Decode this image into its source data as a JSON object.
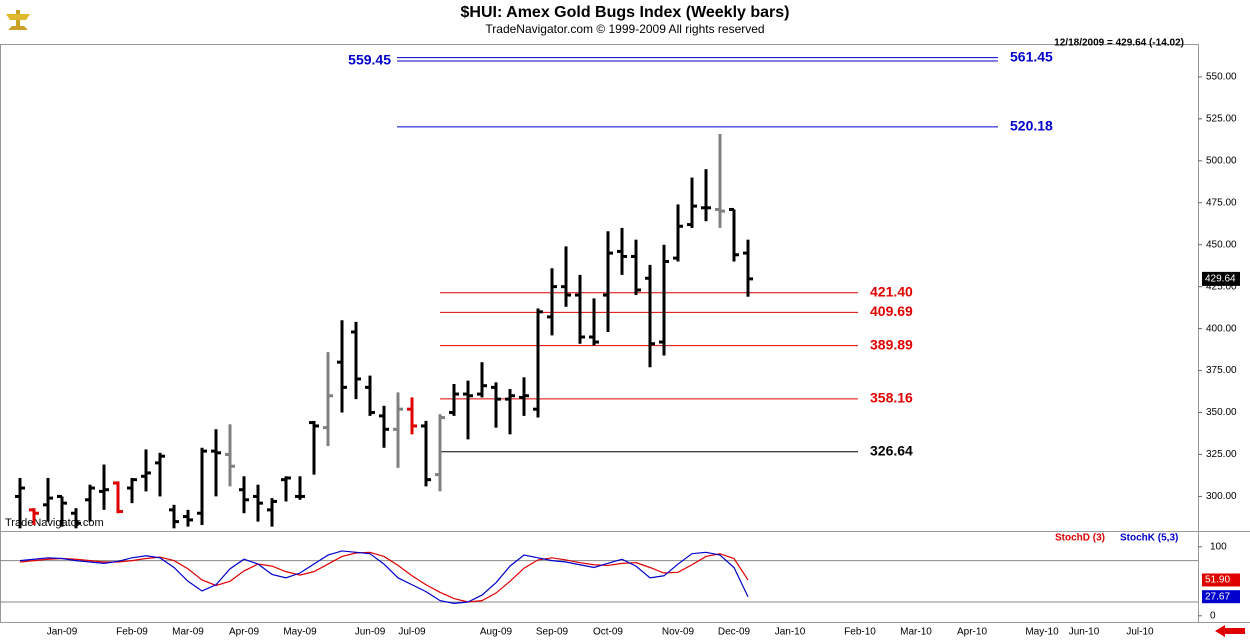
{
  "chart_data": [
    {
      "type": "ohlc",
      "title": "$HUI:  Amex Gold Bugs Index  (Weekly bars)",
      "subtitle": "TradeNavigator.com © 1999-2009 All rights reserved",
      "info": "12/18/2009 = 429.64 (-14.02)",
      "watermark": "TradeNavigator.com",
      "color": "#000000",
      "bar_colors": {
        "1": "#e00000",
        "7": "#e00000",
        "28": "#e00000",
        "15": "#808080",
        "22": "#808080",
        "27": "#808080",
        "30": "#808080",
        "50": "#808080"
      },
      "ohlc": {
        "open": [
          300,
          292,
          295,
          300,
          290,
          298,
          303,
          308,
          305,
          312,
          320,
          292,
          288,
          290,
          327,
          325,
          304,
          300,
          292,
          310,
          300,
          344,
          341,
          380,
          398,
          365,
          348,
          340,
          352,
          342,
          313,
          350,
          361,
          361,
          365,
          358,
          359,
          352,
          407,
          425,
          420,
          395,
          420,
          446,
          443,
          430,
          392,
          442,
          462,
          472,
          471,
          471,
          445,
          null,
          null,
          null,
          null,
          null,
          null,
          null,
          null,
          null,
          null,
          null,
          null,
          null,
          null,
          null,
          null,
          null,
          null,
          null,
          null,
          null,
          null,
          null,
          null,
          null,
          null,
          null,
          null,
          null,
          null,
          null
        ],
        "high": [
          311,
          293,
          311,
          300,
          293,
          307,
          319,
          309,
          311,
          328,
          326,
          295,
          292,
          329,
          340,
          343,
          312,
          307,
          299,
          312,
          312,
          345,
          386,
          405,
          404,
          372,
          354,
          362,
          359,
          345,
          349,
          367,
          369,
          380,
          368,
          364,
          371,
          412,
          436,
          449,
          432,
          418,
          458,
          460,
          453,
          438,
          450,
          474,
          490,
          495,
          516,
          471,
          453,
          null,
          null,
          null,
          null,
          null,
          null,
          null,
          null,
          null,
          null,
          null,
          null,
          null,
          null,
          null,
          null,
          null,
          null,
          null,
          null,
          null,
          null,
          null,
          null,
          null,
          null,
          null,
          null,
          null,
          null,
          null
        ],
        "low": [
          281,
          283,
          285,
          282,
          281,
          285,
          292,
          290,
          296,
          303,
          300,
          281,
          282,
          283,
          300,
          306,
          290,
          285,
          282,
          297,
          298,
          313,
          330,
          350,
          358,
          348,
          329,
          317,
          337,
          306,
          303,
          348,
          334,
          359,
          341,
          337,
          348,
          347,
          396,
          413,
          391,
          390,
          398,
          432,
          420,
          377,
          384,
          440,
          460,
          464,
          460,
          440,
          419,
          null,
          null,
          null,
          null,
          null,
          null,
          null,
          null,
          null,
          null,
          null,
          null,
          null,
          null,
          null,
          null,
          null,
          null,
          null,
          null,
          null,
          null,
          null,
          null,
          null,
          null,
          null,
          null,
          null,
          null,
          null
        ],
        "close": [
          305,
          290,
          299,
          296,
          284,
          305,
          304,
          291,
          310,
          314,
          324,
          285,
          286,
          327,
          326,
          318,
          298,
          296,
          297,
          311,
          300,
          342,
          360,
          365,
          370,
          350,
          340,
          352,
          342,
          310,
          347,
          361,
          360,
          366,
          358,
          360,
          360,
          410,
          425,
          420,
          395,
          392,
          445,
          443,
          423,
          391,
          440,
          461,
          473,
          472,
          470,
          444,
          429.64,
          null,
          null,
          null,
          null,
          null,
          null,
          null,
          null,
          null,
          null,
          null,
          null,
          null,
          null,
          null,
          null,
          null,
          null,
          null,
          null,
          null,
          null,
          null,
          null,
          null,
          null,
          null,
          null,
          null,
          null,
          null
        ]
      },
      "levels": {
        "values": [
          561.45,
          559.45,
          520.18,
          421.4,
          409.69,
          389.89,
          358.16,
          326.64
        ],
        "value_labels": [
          "561.45",
          "559.45",
          "520.18",
          "421.40",
          "409.69",
          "389.89",
          "358.16",
          "326.64"
        ],
        "colors": [
          "#0000cc",
          "#0000cc",
          "#0000cc",
          "#e00000",
          "#e00000",
          "#e00000",
          "#e00000",
          "#000000"
        ]
      },
      "ylim": [
        280,
        569
      ],
      "yticks": [
        {
          "value": 300,
          "label": "300.00"
        },
        {
          "value": 325,
          "label": "325.00"
        },
        {
          "value": 350,
          "label": "350.00"
        },
        {
          "value": 375,
          "label": "375.00"
        },
        {
          "value": 400,
          "label": "400.00"
        },
        {
          "value": 425,
          "label": "425.00"
        },
        {
          "value": 450,
          "label": "450.00"
        },
        {
          "value": 475,
          "label": "475.00"
        },
        {
          "value": 500,
          "label": "500.00"
        },
        {
          "value": 525,
          "label": "525.00"
        },
        {
          "value": 550,
          "label": "550.00"
        }
      ]
    },
    {
      "type": "line",
      "categories": [
        null,
        null,
        null,
        "Jan-09",
        null,
        null,
        null,
        null,
        "Feb-09",
        null,
        null,
        null,
        "Mar-09",
        null,
        null,
        null,
        "Apr-09",
        null,
        null,
        null,
        "May-09",
        null,
        null,
        null,
        null,
        "Jun-09",
        null,
        null,
        "Jul-09",
        null,
        null,
        null,
        null,
        null,
        "Aug-09",
        null,
        null,
        null,
        "Sep-09",
        null,
        null,
        null,
        "Oct-09",
        null,
        null,
        null,
        null,
        "Nov-09",
        null,
        null,
        null,
        "Dec-09",
        null,
        null,
        null,
        "Jan-10",
        null,
        null,
        null,
        null,
        "Feb-10",
        null,
        null,
        null,
        "Mar-10",
        null,
        null,
        null,
        "Apr-10",
        null,
        null,
        null,
        null,
        "May-10",
        null,
        null,
        "Jun-10",
        null,
        null,
        null,
        "Jul-10",
        null,
        null,
        null
      ],
      "series": [
        {
          "name": "StochD (3)",
          "color": "#e00000",
          "values": [
            78,
            80,
            82,
            83,
            82,
            80,
            78,
            78,
            80,
            83,
            85,
            80,
            68,
            52,
            44,
            50,
            65,
            75,
            72,
            64,
            59,
            64,
            75,
            86,
            91,
            92,
            86,
            73,
            58,
            45,
            34,
            25,
            20,
            22,
            33,
            50,
            69,
            81,
            84,
            81,
            77,
            74,
            73,
            76,
            77,
            70,
            62,
            63,
            74,
            86,
            90,
            83,
            51.9,
            null,
            null,
            null,
            null,
            null,
            null,
            null,
            null,
            null,
            null,
            null,
            null,
            null,
            null,
            null,
            null,
            null,
            null,
            null,
            null,
            null,
            null,
            null,
            null,
            null,
            null,
            null,
            null,
            null,
            null,
            null
          ],
          "value_labels": [
            null,
            null,
            null,
            null,
            null,
            null,
            null,
            null,
            null,
            null,
            null,
            null,
            null,
            null,
            null,
            null,
            null,
            null,
            null,
            null,
            null,
            null,
            null,
            null,
            null,
            null,
            null,
            null,
            null,
            null,
            null,
            null,
            null,
            null,
            null,
            null,
            null,
            null,
            null,
            null,
            null,
            null,
            null,
            null,
            null,
            null,
            null,
            null,
            null,
            null,
            null,
            null,
            "51.90",
            null,
            null,
            null,
            null,
            null,
            null,
            null,
            null,
            null,
            null,
            null,
            null,
            null,
            null,
            null,
            null,
            null,
            null,
            null,
            null,
            null,
            null,
            null,
            null,
            null,
            null,
            null,
            null,
            null,
            null,
            null
          ]
        },
        {
          "name": "StochK (5,3)",
          "color": "#0000cc",
          "values": [
            80,
            82,
            84,
            83,
            80,
            78,
            76,
            79,
            84,
            87,
            84,
            70,
            50,
            36,
            45,
            68,
            82,
            75,
            60,
            55,
            62,
            75,
            88,
            94,
            92,
            90,
            75,
            55,
            45,
            35,
            22,
            18,
            20,
            30,
            48,
            72,
            88,
            84,
            80,
            78,
            74,
            70,
            76,
            82,
            72,
            55,
            58,
            75,
            90,
            92,
            88,
            70,
            27.67,
            null,
            null,
            null,
            null,
            null,
            null,
            null,
            null,
            null,
            null,
            null,
            null,
            null,
            null,
            null,
            null,
            null,
            null,
            null,
            null,
            null,
            null,
            null,
            null,
            null,
            null,
            null,
            null,
            null,
            null,
            null
          ],
          "value_labels": [
            null,
            null,
            null,
            null,
            null,
            null,
            null,
            null,
            null,
            null,
            null,
            null,
            null,
            null,
            null,
            null,
            null,
            null,
            null,
            null,
            null,
            null,
            null,
            null,
            null,
            null,
            null,
            null,
            null,
            null,
            null,
            null,
            null,
            null,
            null,
            null,
            null,
            null,
            null,
            null,
            null,
            null,
            null,
            null,
            null,
            null,
            null,
            null,
            null,
            null,
            null,
            null,
            "27.67",
            null,
            null,
            null,
            null,
            null,
            null,
            null,
            null,
            null,
            null,
            null,
            null,
            null,
            null,
            null,
            null,
            null,
            null,
            null,
            null,
            null,
            null,
            null,
            null,
            null,
            null,
            null,
            null,
            null,
            null,
            null
          ]
        }
      ],
      "guides": [
        80,
        20
      ],
      "ylim": [
        -9,
        120
      ],
      "yticks": [
        100,
        0
      ]
    }
  ]
}
